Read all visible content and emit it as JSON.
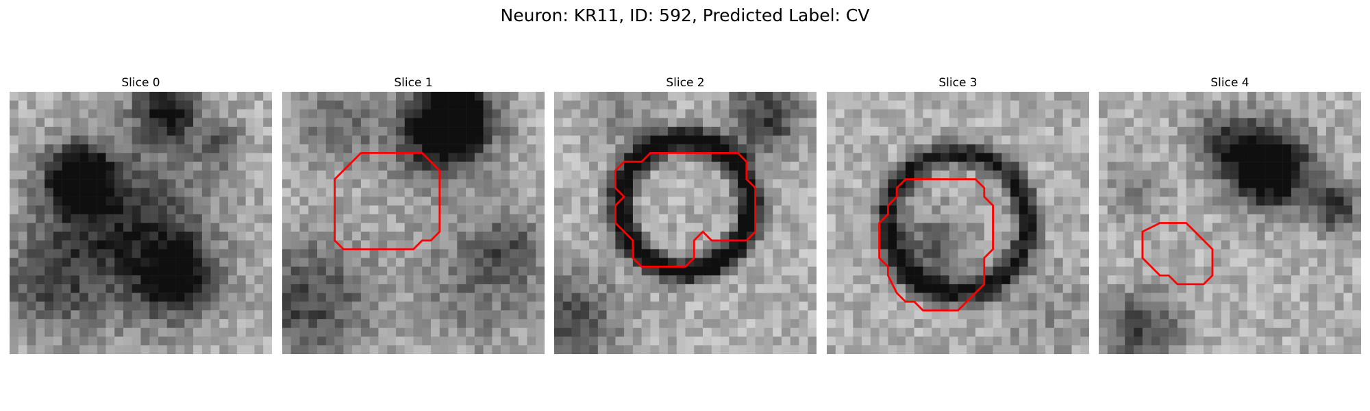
{
  "figure": {
    "title": "Neuron: KR11, ID: 592, Predicted Label: CV"
  },
  "slices": [
    {
      "title": "Slice 0",
      "contour": null
    },
    {
      "title": "Slice 1",
      "contour": [
        [
          9,
          7
        ],
        [
          16,
          7
        ],
        [
          18,
          9
        ],
        [
          18,
          16
        ],
        [
          17,
          17
        ],
        [
          16,
          17
        ],
        [
          15,
          18
        ],
        [
          7,
          18
        ],
        [
          6,
          17
        ],
        [
          6,
          10
        ],
        [
          7,
          9
        ],
        [
          8,
          8
        ]
      ],
      "contour_color": "#ff0000"
    },
    {
      "title": "Slice 2",
      "contour": [
        [
          11,
          7
        ],
        [
          21,
          7
        ],
        [
          22,
          8
        ],
        [
          22,
          10
        ],
        [
          23,
          11
        ],
        [
          23,
          16
        ],
        [
          22,
          17
        ],
        [
          18,
          17
        ],
        [
          17,
          16
        ],
        [
          16,
          17
        ],
        [
          16,
          19
        ],
        [
          15,
          20
        ],
        [
          10,
          20
        ],
        [
          9,
          19
        ],
        [
          9,
          17
        ],
        [
          8,
          16
        ],
        [
          7,
          15
        ],
        [
          7,
          13
        ],
        [
          8,
          12
        ],
        [
          7,
          11
        ],
        [
          7,
          9
        ],
        [
          8,
          8
        ],
        [
          10,
          8
        ]
      ],
      "contour_color": "#ff0000"
    },
    {
      "title": "Slice 3",
      "contour": [
        [
          9,
          10
        ],
        [
          12,
          10
        ],
        [
          17,
          10
        ],
        [
          18,
          11
        ],
        [
          18,
          12
        ],
        [
          19,
          13
        ],
        [
          19,
          18
        ],
        [
          18,
          19
        ],
        [
          18,
          22
        ],
        [
          15,
          25
        ],
        [
          11,
          25
        ],
        [
          10,
          24
        ],
        [
          9,
          24
        ],
        [
          8,
          23
        ],
        [
          7,
          21
        ],
        [
          7,
          20
        ],
        [
          6,
          19
        ],
        [
          6,
          15
        ],
        [
          7,
          14
        ],
        [
          7,
          13
        ],
        [
          8,
          12
        ],
        [
          8,
          11
        ]
      ],
      "contour_color": "#ff0000"
    },
    {
      "title": "Slice 4",
      "contour": [
        [
          7,
          15
        ],
        [
          10,
          15
        ],
        [
          11,
          16
        ],
        [
          12,
          17
        ],
        [
          13,
          18
        ],
        [
          13,
          21
        ],
        [
          12,
          22
        ],
        [
          9,
          22
        ],
        [
          8,
          21
        ],
        [
          7,
          21
        ],
        [
          6,
          20
        ],
        [
          5,
          19
        ],
        [
          5,
          16
        ]
      ],
      "contour_color": "#ff0000"
    }
  ]
}
